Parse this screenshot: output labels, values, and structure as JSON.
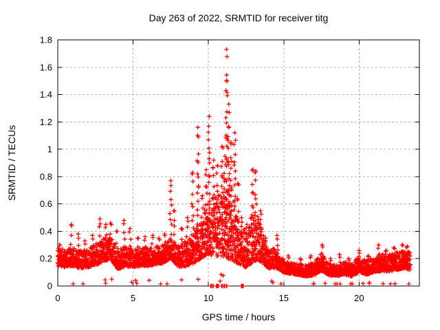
{
  "window": {
    "background": "#ffffff"
  },
  "chart": {
    "title": "Day 263 of 2022, SRMTID for receiver titg",
    "xlabel": "GPS time / hours",
    "ylabel": "SRMTID / TECUs",
    "colors": {
      "marker": "#ff0000",
      "grid": "#b0b0b0",
      "axis": "#000000",
      "text": "#000000",
      "background": "#ffffff"
    }
  },
  "chart_data": {
    "type": "scatter",
    "marker": "plus",
    "series_name": "SRMTID",
    "title": "Day 263 of 2022, SRMTID for receiver titg",
    "xlabel": "GPS time / hours",
    "ylabel": "SRMTID / TECUs",
    "xlim": [
      0,
      24
    ],
    "ylim": [
      0,
      1.8
    ],
    "x_ticks": [
      "0",
      "5",
      "10",
      "15",
      "20"
    ],
    "y_ticks": [
      "0",
      "0.2",
      "0.4",
      "0.6",
      "0.8",
      "1",
      "1.2",
      "1.4",
      "1.6",
      "1.8"
    ],
    "grid": true,
    "grid_style": "dashed",
    "legend": "none",
    "max_point": {
      "x": 11.2,
      "y": 1.73
    },
    "t_start": 0,
    "t_end": 23.4,
    "dt": 0.008,
    "seed": 263,
    "base_anchors": [
      [
        0,
        0.18
      ],
      [
        0.5,
        0.17
      ],
      [
        1,
        0.18
      ],
      [
        1.5,
        0.16
      ],
      [
        2,
        0.17
      ],
      [
        2.5,
        0.19
      ],
      [
        3,
        0.22
      ],
      [
        3.5,
        0.24
      ],
      [
        4,
        0.16
      ],
      [
        4.5,
        0.18
      ],
      [
        5,
        0.17
      ],
      [
        5.5,
        0.18
      ],
      [
        6,
        0.18
      ],
      [
        6.5,
        0.19
      ],
      [
        7,
        0.2
      ],
      [
        7.5,
        0.24
      ],
      [
        8,
        0.18
      ],
      [
        8.5,
        0.19
      ],
      [
        9,
        0.22
      ],
      [
        9.5,
        0.28
      ],
      [
        10,
        0.33
      ],
      [
        10.5,
        0.33
      ],
      [
        11,
        0.34
      ],
      [
        11.5,
        0.32
      ],
      [
        12,
        0.24
      ],
      [
        12.5,
        0.2
      ],
      [
        13,
        0.28
      ],
      [
        13.3,
        0.27
      ],
      [
        13.7,
        0.21
      ],
      [
        14,
        0.16
      ],
      [
        14.5,
        0.17
      ],
      [
        15,
        0.12
      ],
      [
        15.5,
        0.11
      ],
      [
        16,
        0.1
      ],
      [
        16.5,
        0.09
      ],
      [
        17,
        0.1
      ],
      [
        17.5,
        0.14
      ],
      [
        18,
        0.1
      ],
      [
        18.5,
        0.09
      ],
      [
        19,
        0.11
      ],
      [
        19.5,
        0.09
      ],
      [
        20,
        0.13
      ],
      [
        20.5,
        0.11
      ],
      [
        21,
        0.13
      ],
      [
        21.5,
        0.14
      ],
      [
        22,
        0.14
      ],
      [
        22.5,
        0.15
      ],
      [
        23,
        0.16
      ],
      [
        23.4,
        0.15
      ]
    ],
    "amp_anchors": [
      [
        0,
        0.06
      ],
      [
        1,
        0.06
      ],
      [
        2,
        0.06
      ],
      [
        3,
        0.08
      ],
      [
        4,
        0.07
      ],
      [
        5,
        0.06
      ],
      [
        6,
        0.06
      ],
      [
        7,
        0.06
      ],
      [
        8,
        0.07
      ],
      [
        9,
        0.1
      ],
      [
        9.5,
        0.14
      ],
      [
        10,
        0.18
      ],
      [
        10.5,
        0.2
      ],
      [
        11,
        0.22
      ],
      [
        11.5,
        0.24
      ],
      [
        12,
        0.14
      ],
      [
        12.5,
        0.12
      ],
      [
        13,
        0.18
      ],
      [
        13.5,
        0.12
      ],
      [
        14,
        0.06
      ],
      [
        14.5,
        0.07
      ],
      [
        15,
        0.04
      ],
      [
        16,
        0.035
      ],
      [
        17,
        0.04
      ],
      [
        17.5,
        0.06
      ],
      [
        18,
        0.035
      ],
      [
        19,
        0.04
      ],
      [
        20,
        0.05
      ],
      [
        21,
        0.05
      ],
      [
        22,
        0.06
      ],
      [
        23,
        0.06
      ],
      [
        23.4,
        0.06
      ]
    ],
    "spikes": [
      [
        0.15,
        0.3
      ],
      [
        0.9,
        0.45
      ],
      [
        1.35,
        0.38
      ],
      [
        1.8,
        0.33
      ],
      [
        2.3,
        0.37
      ],
      [
        2.8,
        0.49
      ],
      [
        3.2,
        0.45
      ],
      [
        3.5,
        0.46
      ],
      [
        3.9,
        0.4
      ],
      [
        4.4,
        0.48
      ],
      [
        4.8,
        0.42
      ],
      [
        5.3,
        0.35
      ],
      [
        5.8,
        0.36
      ],
      [
        6.3,
        0.37
      ],
      [
        6.7,
        0.35
      ],
      [
        7.1,
        0.38
      ],
      [
        7.5,
        0.77
      ],
      [
        7.7,
        0.55
      ],
      [
        8.2,
        0.42
      ],
      [
        8.6,
        0.5
      ],
      [
        8.95,
        0.83
      ],
      [
        9.3,
        1.16
      ],
      [
        9.6,
        0.66
      ],
      [
        9.85,
        0.85
      ],
      [
        10.05,
        1.24
      ],
      [
        10.35,
        0.92
      ],
      [
        10.6,
        0.88
      ],
      [
        10.9,
        1.02
      ],
      [
        11.1,
        0.95
      ],
      [
        11.2,
        1.73
      ],
      [
        11.35,
        1.33
      ],
      [
        11.5,
        1.05
      ],
      [
        11.75,
        1.12
      ],
      [
        11.95,
        0.75
      ],
      [
        12.2,
        0.5
      ],
      [
        12.55,
        0.45
      ],
      [
        12.95,
        0.85
      ],
      [
        13.15,
        0.84
      ],
      [
        13.45,
        0.55
      ],
      [
        13.8,
        0.35
      ],
      [
        14.55,
        0.37
      ],
      [
        15.3,
        0.22
      ],
      [
        16.1,
        0.2
      ],
      [
        16.8,
        0.22
      ],
      [
        17.55,
        0.3
      ],
      [
        18.1,
        0.2
      ],
      [
        18.7,
        0.23
      ],
      [
        19.3,
        0.2
      ],
      [
        20.0,
        0.26
      ],
      [
        20.6,
        0.22
      ],
      [
        21.3,
        0.3
      ],
      [
        21.8,
        0.26
      ],
      [
        22.3,
        0.28
      ],
      [
        22.9,
        0.3
      ],
      [
        23.2,
        0.29
      ]
    ],
    "zero_value_times": [
      10.17,
      10.3,
      10.55,
      10.65,
      10.9,
      11.05,
      11.2,
      12.2,
      12.3
    ]
  }
}
